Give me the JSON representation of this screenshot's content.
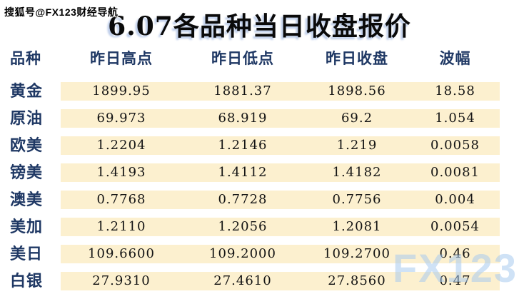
{
  "page": {
    "source_watermark": "搜狐号@FX123财经导航",
    "title": "6.07各品种当日收盘报价",
    "brand_watermark": "FX123"
  },
  "table": {
    "columns": [
      "品种",
      "昨日高点",
      "昨日低点",
      "昨日收盘",
      "波幅"
    ],
    "rows": [
      {
        "name": "黄金",
        "high": "1899.95",
        "low": "1881.37",
        "close": "1898.56",
        "range": "18.58"
      },
      {
        "name": "原油",
        "high": "69.973",
        "low": "68.919",
        "close": "69.2",
        "range": "1.054"
      },
      {
        "name": "欧美",
        "high": "1.2204",
        "low": "1.2146",
        "close": "1.219",
        "range": "0.0058"
      },
      {
        "name": "镑美",
        "high": "1.4193",
        "low": "1.4112",
        "close": "1.4182",
        "range": "0.0081"
      },
      {
        "name": "澳美",
        "high": "0.7768",
        "low": "0.7728",
        "close": "0.7756",
        "range": "0.004"
      },
      {
        "name": "美加",
        "high": "1.2110",
        "low": "1.2056",
        "close": "1.2081",
        "range": "0.0054"
      },
      {
        "name": "美日",
        "high": "109.6600",
        "low": "109.2000",
        "close": "109.2700",
        "range": "0.46"
      },
      {
        "name": "白银",
        "high": "27.9310",
        "low": "27.4610",
        "close": "27.8560",
        "range": "0.47"
      }
    ],
    "colors": {
      "cell_background": "#FCF0CF",
      "label_text": "#1F3864",
      "number_text": "#141414",
      "watermark_blue": "#A8CBEE"
    }
  },
  "chart_data": {
    "type": "table",
    "title": "6.07各品种当日收盘报价",
    "columns": [
      "品种",
      "昨日高点",
      "昨日低点",
      "昨日收盘",
      "波幅"
    ],
    "rows": [
      [
        "黄金",
        1899.95,
        1881.37,
        1898.56,
        18.58
      ],
      [
        "原油",
        69.973,
        68.919,
        69.2,
        1.054
      ],
      [
        "欧美",
        1.2204,
        1.2146,
        1.219,
        0.0058
      ],
      [
        "镑美",
        1.4193,
        1.4112,
        1.4182,
        0.0081
      ],
      [
        "澳美",
        0.7768,
        0.7728,
        0.7756,
        0.004
      ],
      [
        "美加",
        1.211,
        1.2056,
        1.2081,
        0.0054
      ],
      [
        "美日",
        109.66,
        109.2,
        109.27,
        0.46
      ],
      [
        "白银",
        27.931,
        27.461,
        27.856,
        0.47
      ]
    ]
  }
}
